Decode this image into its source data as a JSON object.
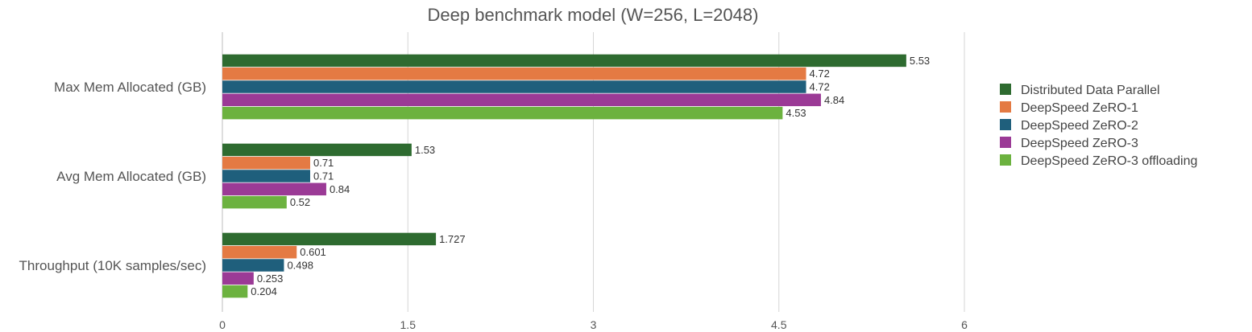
{
  "chart_data": {
    "type": "bar",
    "orientation": "horizontal",
    "title": "Deep benchmark model (W=256, L=2048)",
    "xlabel": "",
    "ylabel": "",
    "xlim": [
      0,
      6
    ],
    "ticks": [
      {
        "value": 0,
        "label": "0"
      },
      {
        "value": 1.5,
        "label": "1.5"
      },
      {
        "value": 3,
        "label": "3"
      },
      {
        "value": 4.5,
        "label": "4.5"
      },
      {
        "value": 6,
        "label": "6"
      }
    ],
    "categories": [
      "Max Mem Allocated (GB)",
      "Avg Mem Allocated (GB)",
      "Throughput (10K samples/sec)"
    ],
    "series": [
      {
        "name": "Distributed Data Parallel",
        "color": "#2e6b30",
        "values": [
          5.53,
          1.53,
          1.727
        ],
        "labels": [
          "5.53",
          "1.53",
          "1.727"
        ]
      },
      {
        "name": "DeepSpeed ZeRO-1",
        "color": "#e47a43",
        "values": [
          4.72,
          0.71,
          0.601
        ],
        "labels": [
          "4.72",
          "0.71",
          "0.601"
        ]
      },
      {
        "name": "DeepSpeed ZeRO-2",
        "color": "#1f5f7c",
        "values": [
          4.72,
          0.71,
          0.498
        ],
        "labels": [
          "4.72",
          "0.71",
          "0.498"
        ]
      },
      {
        "name": "DeepSpeed ZeRO-3",
        "color": "#9b3a96",
        "values": [
          4.84,
          0.84,
          0.253
        ],
        "labels": [
          "4.84",
          "0.84",
          "0.253"
        ]
      },
      {
        "name": "DeepSpeed ZeRO-3 offloading",
        "color": "#6cb23f",
        "values": [
          4.53,
          0.52,
          0.204
        ],
        "labels": [
          "4.53",
          "0.52",
          "0.204"
        ]
      }
    ],
    "grid": true,
    "legend_position": "right"
  }
}
